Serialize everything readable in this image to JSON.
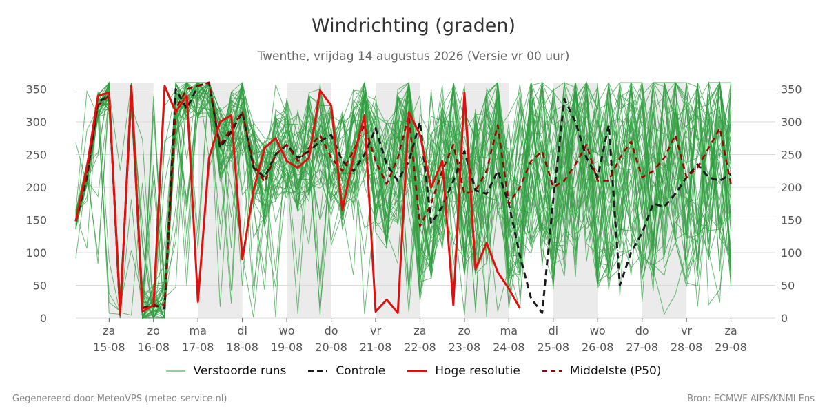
{
  "title": "Windrichting (graden)",
  "subtitle": "Twenthe, vrijdag 14 augustus 2026 (Versie vr 00 uur)",
  "footer": {
    "left": "Gegenereerd door MeteoVPS (meteo-service.nl)",
    "right": "Bron: ECMWF AIFS/KNMI Ens"
  },
  "colors": {
    "ensemble": "#2e9e3e",
    "control": "#1a1a1a",
    "high_res": "#e01010",
    "median": "#a00000",
    "night_shade": "#ebebeb",
    "grid": "#d9d9d9"
  },
  "chart_data": {
    "type": "line",
    "title": "Windrichting (graden)",
    "ylim": [
      0,
      360
    ],
    "yticks": [
      0,
      50,
      100,
      150,
      200,
      250,
      300,
      350
    ],
    "xlim": [
      -0.75,
      15
    ],
    "x_unit": "days after 15-08 (vr 14-08 onwards, 3-hourly)",
    "x_ticks": [
      {
        "x": 0,
        "day": "za",
        "date": "15-08"
      },
      {
        "x": 1,
        "day": "zo",
        "date": "16-08"
      },
      {
        "x": 2,
        "day": "ma",
        "date": "17-08"
      },
      {
        "x": 3,
        "day": "di",
        "date": "18-08"
      },
      {
        "x": 4,
        "day": "wo",
        "date": "19-08"
      },
      {
        "x": 5,
        "day": "do",
        "date": "20-08"
      },
      {
        "x": 6,
        "day": "vr",
        "date": "21-08"
      },
      {
        "x": 7,
        "day": "za",
        "date": "22-08"
      },
      {
        "x": 8,
        "day": "zo",
        "date": "23-08"
      },
      {
        "x": 9,
        "day": "ma",
        "date": "24-08"
      },
      {
        "x": 10,
        "day": "di",
        "date": "25-08"
      },
      {
        "x": 11,
        "day": "wo",
        "date": "26-08"
      },
      {
        "x": 12,
        "day": "do",
        "date": "27-08"
      },
      {
        "x": 13,
        "day": "vr",
        "date": "28-08"
      },
      {
        "x": 14,
        "day": "za",
        "date": "29-08"
      }
    ],
    "shaded_ranges": [
      [
        0,
        1
      ],
      [
        2,
        3
      ],
      [
        4,
        5
      ],
      [
        6,
        7
      ],
      [
        8,
        9
      ],
      [
        10,
        11
      ],
      [
        12,
        13
      ]
    ],
    "legend": [
      "Verstoorde runs",
      "Controle",
      "Hoge resolutie",
      "Middelste (P50)"
    ],
    "legend_position": "bottom",
    "grid": true,
    "series": [
      {
        "name": "Controle",
        "style": "dashed",
        "x": [
          -0.75,
          -0.5,
          -0.25,
          0,
          0.25,
          0.5,
          0.75,
          1,
          1.25,
          1.5,
          1.75,
          2,
          2.25,
          2.5,
          2.75,
          3,
          3.25,
          3.5,
          3.75,
          4,
          4.25,
          4.5,
          4.75,
          5,
          5.25,
          5.5,
          5.75,
          6,
          6.25,
          6.5,
          6.75,
          7,
          7.25,
          7.5,
          7.75,
          8,
          8.25,
          8.5,
          8.75,
          9,
          9.25,
          9.5,
          9.75,
          10,
          10.25,
          10.5,
          10.75,
          11,
          11.25,
          11.5,
          11.75,
          12,
          12.25,
          12.5,
          12.75,
          13,
          13.25,
          13.5,
          13.75,
          14
        ],
        "values": [
          148,
          215,
          330,
          340,
          5,
          355,
          15,
          20,
          15,
          350,
          320,
          355,
          360,
          260,
          285,
          315,
          230,
          215,
          250,
          265,
          245,
          255,
          270,
          280,
          240,
          225,
          250,
          290,
          235,
          210,
          240,
          300,
          145,
          170,
          210,
          255,
          195,
          190,
          225,
          175,
          95,
          30,
          8,
          180,
          335,
          300,
          245,
          215,
          295,
          50,
          100,
          130,
          175,
          170,
          190,
          215,
          235,
          215,
          210,
          220
        ]
      },
      {
        "name": "Hoge resolutie",
        "style": "solid",
        "x": [
          -0.75,
          -0.5,
          -0.25,
          0,
          0.25,
          0.5,
          0.75,
          1,
          1.25,
          1.5,
          1.75,
          2,
          2.25,
          2.5,
          2.75,
          3,
          3.25,
          3.5,
          3.75,
          4,
          4.25,
          4.5,
          4.75,
          5,
          5.25,
          5.5,
          5.75,
          6,
          6.25,
          6.5,
          6.75,
          7,
          7.25,
          7.5,
          7.75,
          8,
          8.25,
          8.5,
          8.75,
          9,
          9.25
        ],
        "values": [
          148,
          230,
          340,
          345,
          5,
          355,
          10,
          20,
          355,
          315,
          340,
          25,
          245,
          300,
          310,
          90,
          195,
          260,
          275,
          240,
          230,
          245,
          348,
          325,
          165,
          245,
          310,
          10,
          28,
          8,
          315,
          280,
          200,
          240,
          20,
          345,
          75,
          115,
          70,
          45,
          15
        ]
      },
      {
        "name": "Middelste (P50)",
        "style": "dashed",
        "x": [
          -0.75,
          -0.5,
          -0.25,
          0,
          0.25,
          0.5,
          0.75,
          1,
          1.25,
          1.5,
          1.75,
          2,
          2.25,
          2.5,
          2.75,
          3,
          3.25,
          3.5,
          3.75,
          4,
          4.25,
          4.5,
          4.75,
          5,
          5.25,
          5.5,
          5.75,
          6,
          6.25,
          6.5,
          6.75,
          7,
          7.25,
          7.5,
          7.75,
          8,
          8.25,
          8.5,
          8.75,
          9,
          9.25,
          9.5,
          9.75,
          10,
          10.25,
          10.5,
          10.75,
          11,
          11.25,
          11.5,
          11.75,
          12,
          12.25,
          12.5,
          12.75,
          13,
          13.25,
          13.5,
          13.75,
          14
        ],
        "values": [
          150,
          220,
          325,
          340,
          10,
          350,
          15,
          18,
          20,
          320,
          350,
          355,
          360,
          265,
          290,
          315,
          235,
          208,
          250,
          265,
          240,
          260,
          280,
          245,
          225,
          255,
          295,
          240,
          205,
          245,
          310,
          140,
          175,
          225,
          265,
          190,
          195,
          225,
          295,
          175,
          200,
          240,
          255,
          200,
          210,
          235,
          265,
          210,
          210,
          245,
          270,
          215,
          225,
          245,
          280,
          215,
          230,
          260,
          290,
          205
        ]
      }
    ],
    "ensemble": {
      "name": "Verstoorde runs",
      "member_count": 50,
      "x_start": -0.75,
      "x_step": 0.25,
      "points": 60
    }
  }
}
